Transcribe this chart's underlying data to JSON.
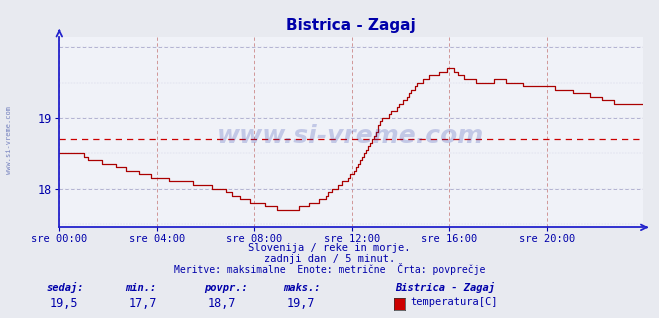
{
  "title": "Bistrica - Zagaj",
  "title_color": "#0000aa",
  "bg_color": "#e8eaf0",
  "plot_bg_color": "#f0f2f8",
  "line_color": "#aa0000",
  "avg_line_color": "#cc0000",
  "axis_color": "#2222cc",
  "grid_color_v": "#cc8888",
  "grid_color_h": "#aaaacc",
  "text_color": "#0000aa",
  "xlabels": [
    "sre 00:00",
    "sre 04:00",
    "sre 08:00",
    "sre 12:00",
    "sre 16:00",
    "sre 20:00"
  ],
  "ylim": [
    17.45,
    20.15
  ],
  "yticks": [
    18,
    19
  ],
  "avg_value": 18.7,
  "footer_line1": "Slovenija / reke in morje.",
  "footer_line2": "zadnji dan / 5 minut.",
  "footer_line3": "Meritve: maksimalne  Enote: metrične  Črta: povprečje",
  "stat_labels": [
    "sedaj:",
    "min.:",
    "povpr.:",
    "maks.:"
  ],
  "stat_values": [
    "19,5",
    "17,7",
    "18,7",
    "19,7"
  ],
  "legend_label": "Bistrica - Zagaj",
  "legend_unit": "temperatura[C]",
  "watermark": "www.si-vreme.com",
  "side_label": "www.si-vreme.com"
}
